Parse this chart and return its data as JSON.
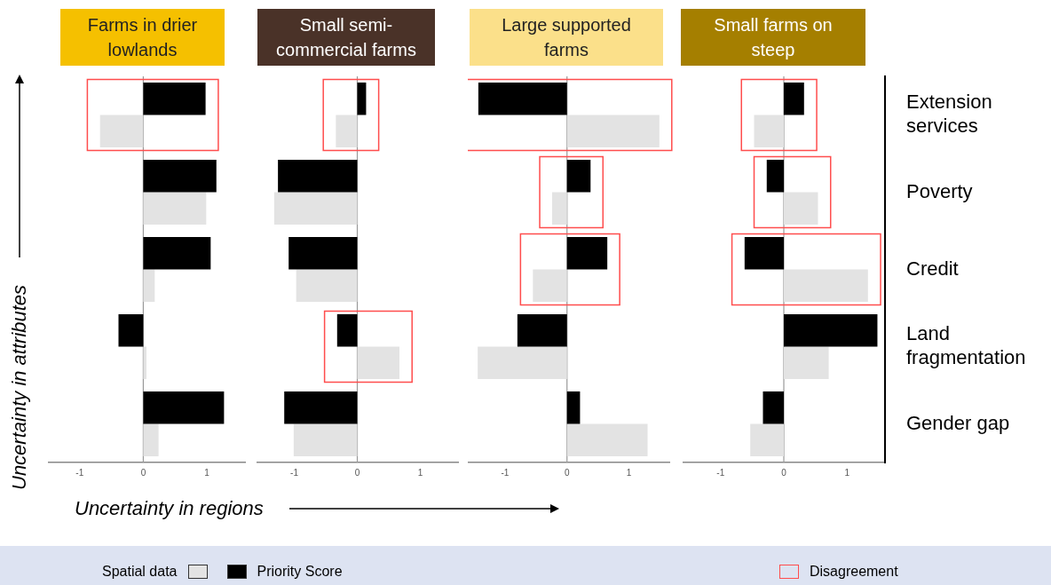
{
  "chart_data": [
    {
      "type": "bar",
      "orientation": "horizontal",
      "title": "Farms in drier lowlands",
      "xlabel": "Uncertainty in regions",
      "ylabel": "Uncertainty in attributes",
      "legend": "bottom",
      "tick_labels": "x",
      "categories": [
        null,
        null,
        null,
        null,
        null
      ],
      "xlim": [
        -1.5,
        1.6
      ],
      "xticks": [
        -1,
        0,
        1
      ],
      "series": [
        {
          "name": "Priority Score",
          "color": "#000000",
          "values": [
            0.98,
            1.15,
            1.06,
            -0.39,
            1.27
          ]
        },
        {
          "name": "Spatial data",
          "color": "#e3e3e3",
          "values": [
            -0.68,
            0.99,
            0.18,
            0.05,
            0.24
          ]
        }
      ],
      "ref_lines": [
        {
          "axis": "x",
          "value": 0,
          "color": "#999999"
        }
      ],
      "annotations": [
        "Disagreement"
      ]
    },
    {
      "type": "bar",
      "orientation": "horizontal",
      "title": "Small semi-commercial farms",
      "tick_labels": "x",
      "categories": [
        null,
        null,
        null,
        null,
        null
      ],
      "xlim": [
        -1.6,
        1.6
      ],
      "xticks": [
        -1,
        0,
        1
      ],
      "series": [
        {
          "color": "#000000",
          "values": [
            0.14,
            -1.26,
            -1.09,
            -0.32,
            -1.16
          ]
        },
        {
          "color": "#e3e3e3",
          "values": [
            -0.34,
            -1.32,
            -0.97,
            0.67,
            -1.01
          ]
        }
      ],
      "ref_lines": [
        {
          "axis": "x",
          "value": 0,
          "color": "#999999"
        }
      ]
    },
    {
      "type": "bar",
      "orientation": "horizontal",
      "title": "Large supported farms",
      "tick_labels": "x",
      "categories": [
        null,
        null,
        null,
        null,
        null
      ],
      "xlim": [
        -1.6,
        1.65
      ],
      "xticks": [
        -1,
        0,
        1
      ],
      "series": [
        {
          "color": "#000000",
          "values": [
            -1.43,
            0.38,
            0.65,
            -0.8,
            0.21
          ]
        },
        {
          "color": "#e3e3e3",
          "values": [
            1.49,
            -0.24,
            -0.55,
            -1.44,
            1.3
          ]
        }
      ],
      "ref_lines": [
        {
          "axis": "x",
          "value": 0,
          "color": "#999999"
        }
      ]
    },
    {
      "type": "bar",
      "orientation": "horizontal",
      "title": "Small farms on steep",
      "categories": [
        "Extension services",
        "Poverty",
        "Credit",
        "Land fragmentation",
        "Gender gap"
      ],
      "xlim": [
        -1.6,
        1.6
      ],
      "xticks": [
        -1,
        0,
        1
      ],
      "series": [
        {
          "color": "#000000",
          "values": [
            0.32,
            -0.27,
            -0.62,
            1.48,
            -0.33
          ]
        },
        {
          "color": "#e3e3e3",
          "values": [
            -0.47,
            0.54,
            1.33,
            0.71,
            -0.53
          ]
        }
      ],
      "ref_lines": [
        {
          "axis": "x",
          "value": 0,
          "color": "#999999"
        }
      ]
    }
  ]
}
